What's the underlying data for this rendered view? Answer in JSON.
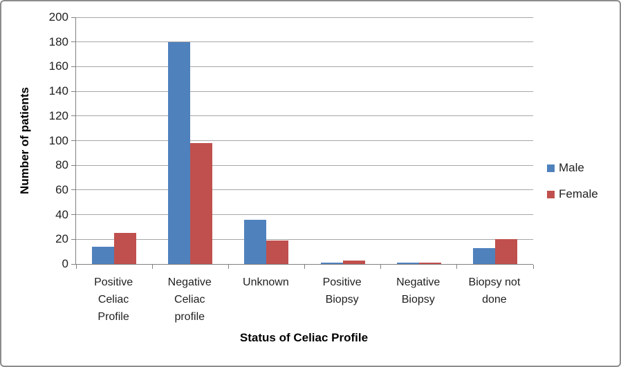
{
  "chart_data": {
    "type": "bar",
    "title": "",
    "categories": [
      "Positive Celiac Profile",
      "Negative Celiac profile",
      "Unknown",
      "Positive Biopsy",
      "Negative Biopsy",
      "Biopsy not done"
    ],
    "series": [
      {
        "name": "Male",
        "color": "#4F81BD",
        "values": [
          14,
          180,
          36,
          1,
          1,
          13
        ]
      },
      {
        "name": "Female",
        "color": "#C0504D",
        "values": [
          25,
          98,
          19,
          3,
          1,
          20
        ]
      }
    ],
    "xlabel": "Status of Celiac Profile",
    "ylabel": "Number of patients",
    "ylim": [
      0,
      200
    ],
    "ytick_step": 20,
    "yticks": [
      0,
      20,
      40,
      60,
      80,
      100,
      120,
      140,
      160,
      180,
      200
    ],
    "grid": true,
    "legend_position": "right",
    "legend_labels": [
      "Male",
      "Female"
    ]
  },
  "colors": {
    "male": "#4F81BD",
    "female": "#C0504D",
    "gridline": "#a6a6a6",
    "axis": "#808080",
    "frame_border": "#8c8c8c"
  }
}
